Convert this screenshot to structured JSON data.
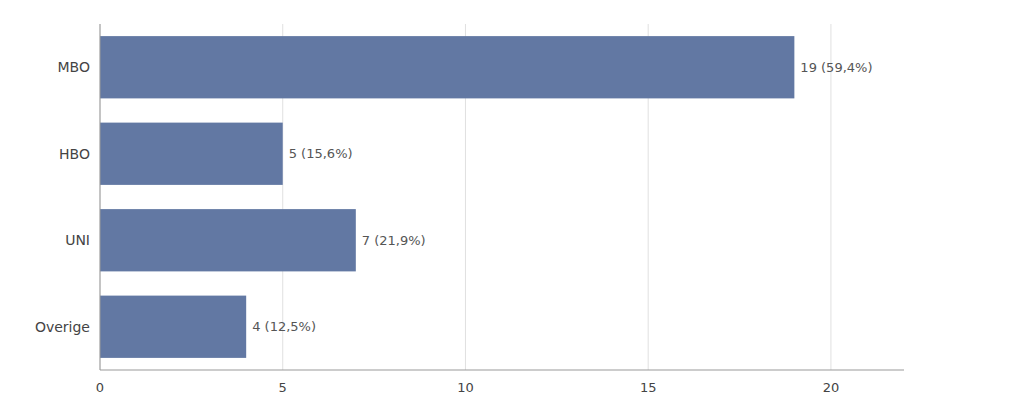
{
  "chart_data": {
    "type": "bar",
    "orientation": "horizontal",
    "categories": [
      "MBO",
      "HBO",
      "UNI",
      "Overige"
    ],
    "values": [
      19,
      5,
      7,
      4
    ],
    "value_labels": [
      "19 (59,4%)",
      "5 (15,6%)",
      "7 (21,9%)",
      "4 (12,5%)"
    ],
    "data_labels": true,
    "color": "#6278a3",
    "xlim": [
      0,
      22
    ],
    "xticks": [
      0,
      5,
      10,
      15,
      20
    ],
    "grid": true
  }
}
